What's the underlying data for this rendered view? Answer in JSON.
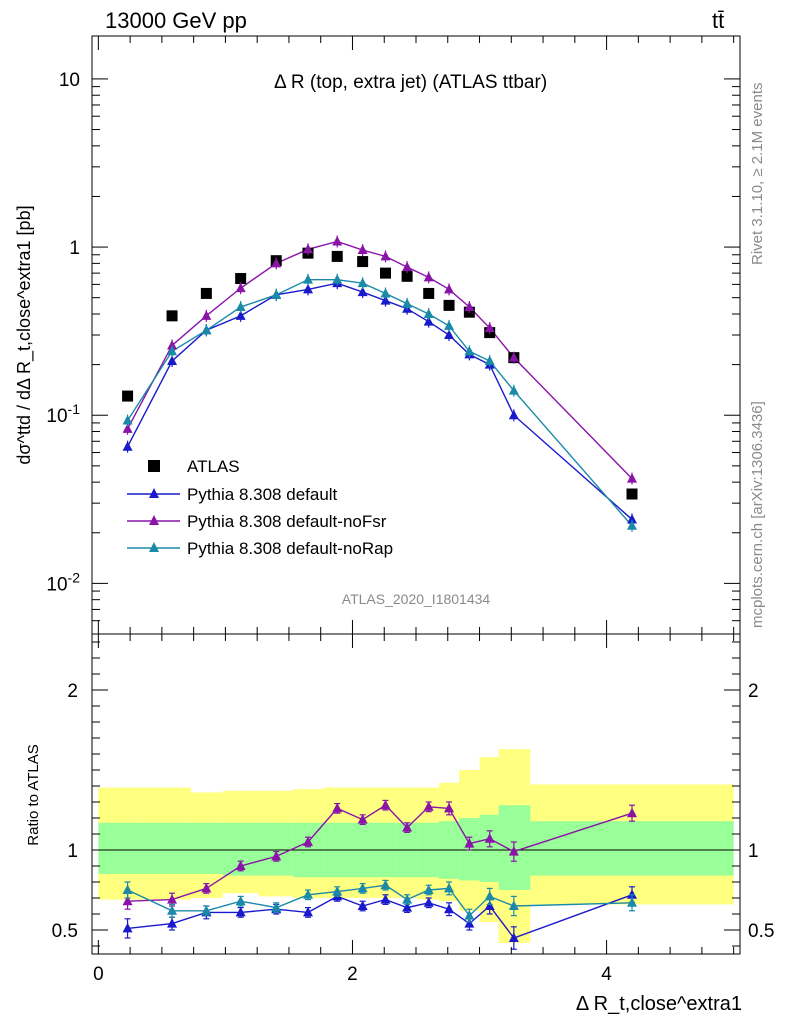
{
  "header": {
    "energy_label": "13000 GeV pp",
    "process_label": "tt̄"
  },
  "side_labels": {
    "rivet": "Rivet 3.1.10, ≥ 2.1M events",
    "mcplots": "mcplots.cern.ch [arXiv:1306.3436]"
  },
  "analysis_id": "ATLAS_2020_I1801434",
  "chart_data": [
    {
      "type": "scatter",
      "panel": "main",
      "title": "Δ R (top, extra jet) (ATLAS ttbar)",
      "ylabel": "dσ^ttd / dΔ R_t,close^extra1 [pb]",
      "xlabel": "Δ R_t,close^extra1",
      "yscale": "log",
      "ylim": [
        0.005,
        18
      ],
      "xlim": [
        -0.05,
        5.05
      ],
      "ytick_labels": [
        "10^-2",
        "10^-1",
        "1",
        "10"
      ],
      "xtick_labels": [
        "0",
        "2",
        "4"
      ],
      "legend_placement": "lower-left",
      "x": [
        0.23,
        0.58,
        0.85,
        1.12,
        1.4,
        1.65,
        1.88,
        2.08,
        2.26,
        2.43,
        2.6,
        2.76,
        2.92,
        3.08,
        3.27,
        4.2
      ],
      "series": [
        {
          "name": "ATLAS",
          "color": "#000000",
          "marker": "square",
          "values": [
            0.13,
            0.39,
            0.53,
            0.65,
            0.83,
            0.92,
            0.88,
            0.82,
            0.7,
            0.67,
            0.53,
            0.45,
            0.41,
            0.31,
            0.22,
            0.034
          ]
        },
        {
          "name": "Pythia 8.308 default",
          "color": "#1a1acc",
          "marker": "triangle",
          "values": [
            0.065,
            0.21,
            0.32,
            0.39,
            0.52,
            0.56,
            0.61,
            0.54,
            0.48,
            0.43,
            0.36,
            0.3,
            0.23,
            0.2,
            0.1,
            0.024
          ]
        },
        {
          "name": "Pythia 8.308 default-noFsr",
          "color": "#8a14a8",
          "marker": "triangle",
          "values": [
            0.083,
            0.26,
            0.39,
            0.57,
            0.8,
            0.97,
            1.08,
            0.96,
            0.88,
            0.76,
            0.66,
            0.56,
            0.44,
            0.33,
            0.22,
            0.042
          ]
        },
        {
          "name": "Pythia 8.308 default-noRap",
          "color": "#1a8aa8",
          "marker": "triangle",
          "values": [
            0.093,
            0.24,
            0.32,
            0.44,
            0.52,
            0.64,
            0.64,
            0.61,
            0.53,
            0.46,
            0.4,
            0.34,
            0.24,
            0.21,
            0.14,
            0.022
          ]
        }
      ]
    },
    {
      "type": "line",
      "panel": "ratio",
      "ylabel": "Ratio to ATLAS",
      "ylim": [
        0.35,
        2.35
      ],
      "ytick_labels": [
        "0.5",
        "1",
        "2"
      ],
      "reference_line": 1,
      "bands": {
        "bin_edges": [
          0.0,
          0.35,
          0.73,
          0.98,
          1.26,
          1.53,
          1.77,
          1.98,
          2.17,
          2.34,
          2.51,
          2.68,
          2.84,
          3.0,
          3.15,
          3.4,
          5.0
        ],
        "inner_color": "#99ff99",
        "outer_color": "#ffff80",
        "inner_lo": [
          0.85,
          0.85,
          0.85,
          0.84,
          0.84,
          0.83,
          0.83,
          0.83,
          0.83,
          0.83,
          0.83,
          0.82,
          0.81,
          0.8,
          0.75,
          0.84
        ],
        "inner_hi": [
          1.17,
          1.17,
          1.17,
          1.17,
          1.17,
          1.17,
          1.17,
          1.17,
          1.17,
          1.17,
          1.17,
          1.18,
          1.2,
          1.22,
          1.28,
          1.18
        ],
        "outer_lo": [
          0.69,
          0.69,
          0.7,
          0.73,
          0.71,
          0.7,
          0.7,
          0.7,
          0.7,
          0.7,
          0.69,
          0.68,
          0.62,
          0.55,
          0.42,
          0.66
        ],
        "outer_hi": [
          1.39,
          1.39,
          1.36,
          1.37,
          1.37,
          1.38,
          1.39,
          1.39,
          1.39,
          1.39,
          1.39,
          1.42,
          1.5,
          1.58,
          1.63,
          1.41
        ]
      },
      "series": [
        {
          "name": "Pythia 8.308 default",
          "color": "#1a1acc",
          "values": [
            0.51,
            0.54,
            0.61,
            0.61,
            0.63,
            0.61,
            0.71,
            0.65,
            0.69,
            0.64,
            0.67,
            0.63,
            0.54,
            0.65,
            0.45,
            0.72
          ],
          "errors": [
            0.06,
            0.04,
            0.04,
            0.03,
            0.03,
            0.03,
            0.03,
            0.03,
            0.03,
            0.03,
            0.03,
            0.04,
            0.04,
            0.05,
            0.07,
            0.05
          ]
        },
        {
          "name": "Pythia 8.308 default-noFsr",
          "color": "#8a14a8",
          "values": [
            0.68,
            0.69,
            0.76,
            0.9,
            0.96,
            1.05,
            1.26,
            1.19,
            1.28,
            1.14,
            1.27,
            1.26,
            1.04,
            1.07,
            0.99,
            1.23
          ],
          "errors": [
            0.05,
            0.04,
            0.03,
            0.03,
            0.03,
            0.03,
            0.03,
            0.03,
            0.03,
            0.03,
            0.03,
            0.04,
            0.04,
            0.05,
            0.06,
            0.05
          ]
        },
        {
          "name": "Pythia 8.308 default-noRap",
          "color": "#1a8aa8",
          "values": [
            0.75,
            0.62,
            0.62,
            0.68,
            0.64,
            0.72,
            0.74,
            0.76,
            0.78,
            0.69,
            0.75,
            0.76,
            0.59,
            0.71,
            0.65,
            0.67
          ],
          "errors": [
            0.05,
            0.04,
            0.03,
            0.03,
            0.03,
            0.03,
            0.03,
            0.03,
            0.03,
            0.03,
            0.03,
            0.04,
            0.04,
            0.05,
            0.06,
            0.05
          ]
        }
      ]
    }
  ]
}
